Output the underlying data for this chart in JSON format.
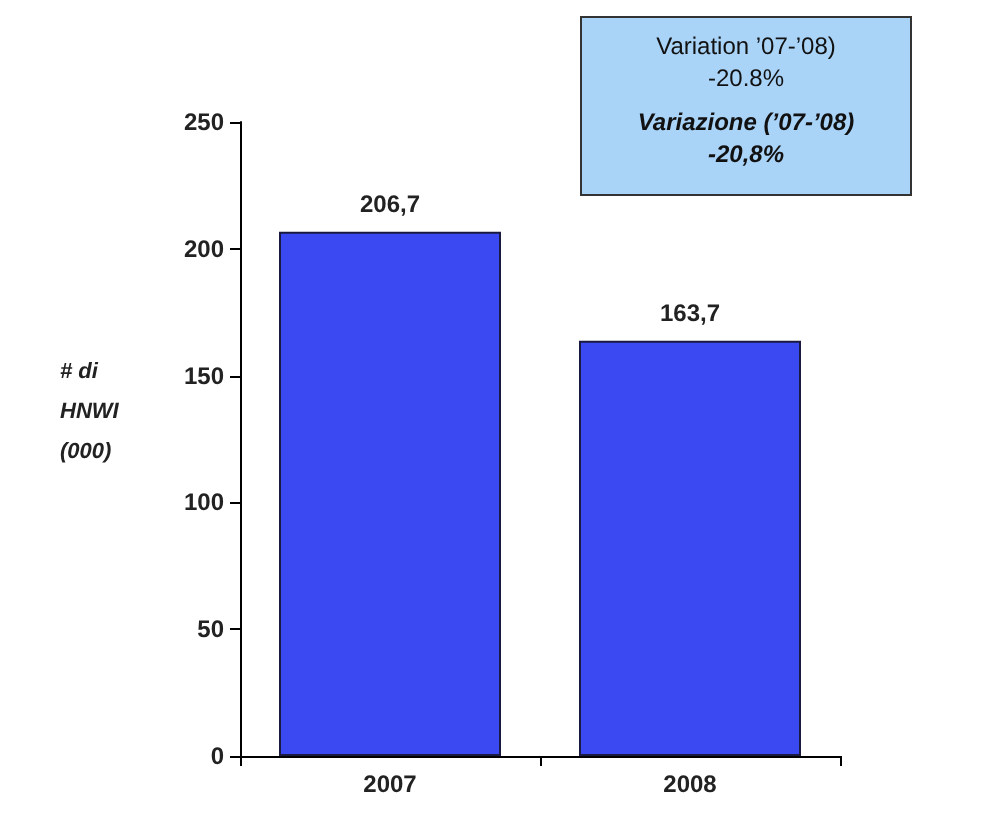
{
  "chart_data": {
    "type": "bar",
    "categories": [
      "2007",
      "2008"
    ],
    "values": [
      206.7,
      163.7
    ],
    "color": "#3a49f2",
    "value_labels": [
      "206,7",
      "163,7"
    ],
    "ylabel": "# di\nHNWI\n(000)",
    "ylim": [
      0,
      250
    ],
    "yticks": [
      0,
      50,
      100,
      150,
      200,
      250
    ],
    "grid": false,
    "annotations": [
      "Variation ’07-’08)\n-20.8%",
      "Variazione (’07-’08)\n-20,8%"
    ]
  }
}
